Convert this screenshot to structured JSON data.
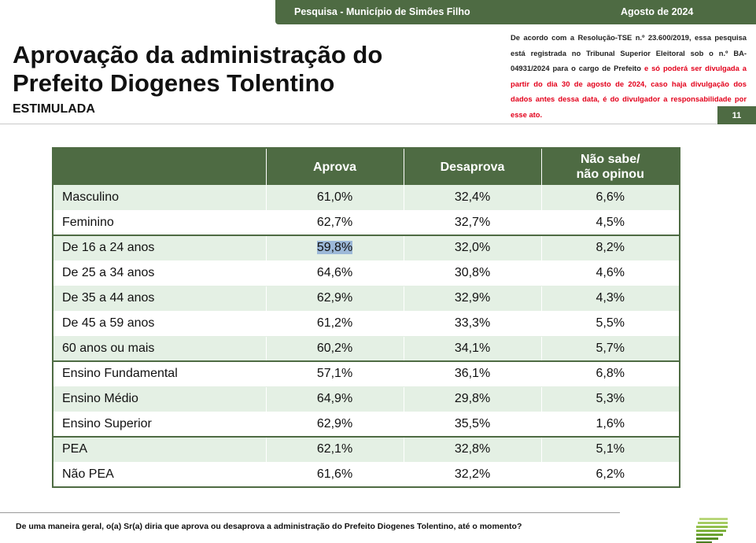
{
  "header": {
    "survey": "Pesquisa - Município de Simões Filho",
    "date": "Agosto de 2024",
    "page_number": "11",
    "title_line1": "Aprovação da administração do",
    "title_line2": "Prefeito Diogenes Tolentino",
    "subtitle": "ESTIMULADA"
  },
  "notice": {
    "black_text": "De acordo com a Resolução-TSE n.º 23.600/2019, essa pesquisa está registrada no Tribunal Superior Eleitoral sob o n.º BA-04931/2024 para o cargo de Prefeito",
    "red_text": "e só poderá ser divulgada a partir do dia 30 de agosto de 2024, caso haja divulgação dos dados antes dessa data, é do divulgador a responsabilidade por esse ato."
  },
  "table": {
    "headers": [
      "",
      "Aprova",
      "Desaprova",
      "Não sabe/",
      "não opinou"
    ],
    "rows": [
      {
        "label": "Masculino",
        "aprova": "61,0%",
        "desaprova": "32,4%",
        "nao_sabe": "6,6%"
      },
      {
        "label": "Feminino",
        "aprova": "62,7%",
        "desaprova": "32,7%",
        "nao_sabe": "4,5%"
      },
      {
        "label": "De 16 a 24 anos",
        "aprova": "59,8%",
        "desaprova": "32,0%",
        "nao_sabe": "8,2%"
      },
      {
        "label": "De 25 a 34 anos",
        "aprova": "64,6%",
        "desaprova": "30,8%",
        "nao_sabe": "4,6%"
      },
      {
        "label": "De 35 a 44 anos",
        "aprova": "62,9%",
        "desaprova": "32,9%",
        "nao_sabe": "4,3%"
      },
      {
        "label": "De 45 a 59 anos",
        "aprova": "61,2%",
        "desaprova": "33,3%",
        "nao_sabe": "5,5%"
      },
      {
        "label": "60 anos ou mais",
        "aprova": "60,2%",
        "desaprova": "34,1%",
        "nao_sabe": "5,7%"
      },
      {
        "label": "Ensino Fundamental",
        "aprova": "57,1%",
        "desaprova": "36,1%",
        "nao_sabe": "6,8%"
      },
      {
        "label": "Ensino Médio",
        "aprova": "64,9%",
        "desaprova": "29,8%",
        "nao_sabe": "5,3%"
      },
      {
        "label": "Ensino Superior",
        "aprova": "62,9%",
        "desaprova": "35,5%",
        "nao_sabe": "1,6%"
      },
      {
        "label": "PEA",
        "aprova": "62,1%",
        "desaprova": "32,8%",
        "nao_sabe": "5,1%"
      },
      {
        "label": "Não PEA",
        "aprova": "61,6%",
        "desaprova": "32,2%",
        "nao_sabe": "6,2%"
      }
    ]
  },
  "footer": {
    "question": "De uma maneira geral, o(a) Sr(a) diria que aprova ou desaprova a administração do Prefeito Diogenes Tolentino, até o momento?"
  },
  "colors": {
    "brand_green": "#4e6b43",
    "row_tint": "#e4f0e4",
    "notice_red": "#e3001b",
    "selection_highlight": "#9cb8d8"
  },
  "icons": {
    "logo": "stacked-green-bars-logo"
  }
}
